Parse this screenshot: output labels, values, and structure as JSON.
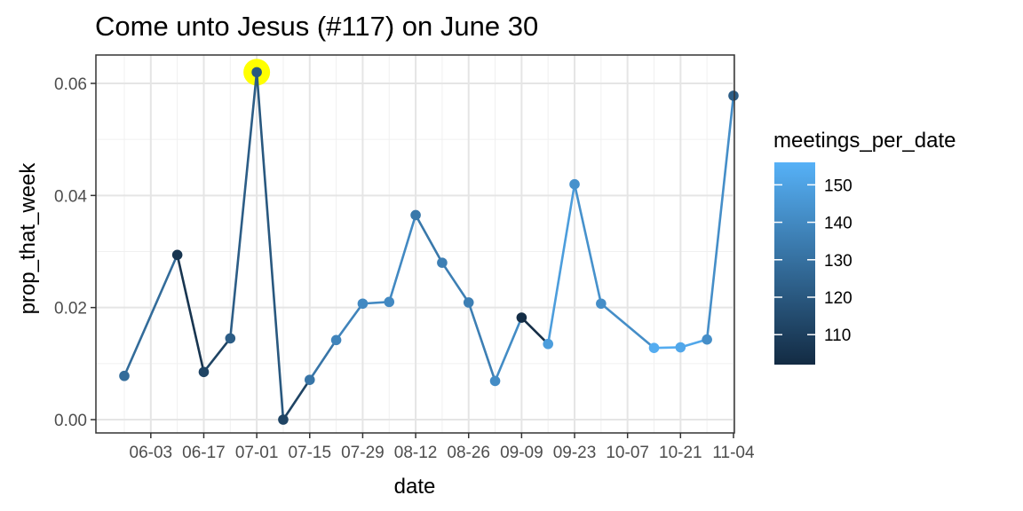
{
  "chart_data": {
    "type": "line",
    "title": "Come unto Jesus (#117) on June 30",
    "xlabel": "date",
    "ylabel": "prop_that_week",
    "x_tick_labels": [
      "06-03",
      "06-17",
      "07-01",
      "07-15",
      "07-29",
      "08-12",
      "08-26",
      "09-09",
      "09-23",
      "10-07",
      "10-21",
      "11-04"
    ],
    "y_tick_labels": [
      "0.00",
      "0.02",
      "0.04",
      "0.06"
    ],
    "y_ticks": [
      0,
      0.02,
      0.04,
      0.06
    ],
    "ylim": [
      -0.0025,
      0.0648
    ],
    "grid": true,
    "highlight": {
      "x": "07-01",
      "y": 0.062,
      "color": "#FFFF00"
    },
    "legend": {
      "title": "meetings_per_date",
      "position": "right",
      "tick_values": [
        110,
        120,
        130,
        140,
        150
      ],
      "range": [
        102,
        156
      ],
      "color_low": "#132B43",
      "color_high": "#56B1F7"
    },
    "points": [
      {
        "x": "05-27",
        "y": 0.0078,
        "meetings": 128
      },
      {
        "x": "06-10",
        "y": 0.0294,
        "meetings": 106
      },
      {
        "x": "06-17",
        "y": 0.0085,
        "meetings": 112
      },
      {
        "x": "06-24",
        "y": 0.0145,
        "meetings": 122
      },
      {
        "x": "07-01",
        "y": 0.062,
        "meetings": 120
      },
      {
        "x": "07-08",
        "y": 0.0,
        "meetings": 112
      },
      {
        "x": "07-15",
        "y": 0.0071,
        "meetings": 132
      },
      {
        "x": "07-22",
        "y": 0.0142,
        "meetings": 138
      },
      {
        "x": "07-29",
        "y": 0.0207,
        "meetings": 140
      },
      {
        "x": "08-05",
        "y": 0.021,
        "meetings": 140
      },
      {
        "x": "08-12",
        "y": 0.0365,
        "meetings": 133
      },
      {
        "x": "08-19",
        "y": 0.028,
        "meetings": 136
      },
      {
        "x": "08-26",
        "y": 0.0209,
        "meetings": 136
      },
      {
        "x": "09-02",
        "y": 0.0069,
        "meetings": 141
      },
      {
        "x": "09-09",
        "y": 0.0182,
        "meetings": 103
      },
      {
        "x": "09-16",
        "y": 0.0135,
        "meetings": 148
      },
      {
        "x": "09-23",
        "y": 0.042,
        "meetings": 143
      },
      {
        "x": "09-30",
        "y": 0.0207,
        "meetings": 142
      },
      {
        "x": "10-14",
        "y": 0.0128,
        "meetings": 154
      },
      {
        "x": "10-21",
        "y": 0.0129,
        "meetings": 152
      },
      {
        "x": "10-28",
        "y": 0.0143,
        "meetings": 142
      },
      {
        "x": "11-04",
        "y": 0.0578,
        "meetings": 122
      }
    ]
  }
}
